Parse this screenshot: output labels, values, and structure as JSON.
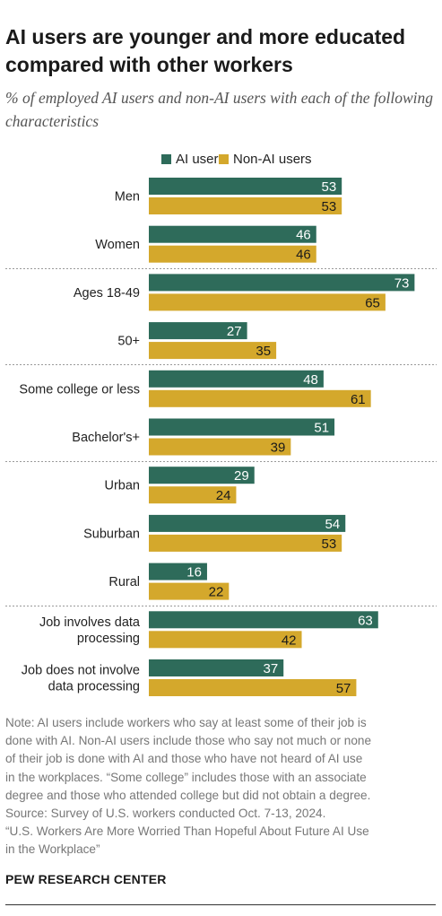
{
  "title": "AI users are younger and more educated compared with other workers",
  "subtitle": "% of employed AI users and non-AI users with each of the following characteristics",
  "legend": [
    {
      "label": "AI users",
      "color": "#2e6b5a"
    },
    {
      "label": "Non-AI users",
      "color": "#d4a82c"
    }
  ],
  "chart_data": {
    "type": "bar",
    "orientation": "horizontal",
    "categories": [
      [
        "Men"
      ],
      [
        "Women"
      ],
      [
        "Ages 18-49"
      ],
      [
        "50+"
      ],
      [
        "Some college or less"
      ],
      [
        "Bachelor's+"
      ],
      [
        "Urban"
      ],
      [
        "Suburban"
      ],
      [
        "Rural"
      ],
      [
        "Job involves data",
        "processing"
      ],
      [
        "Job does not involve",
        "data processing"
      ]
    ],
    "series": [
      {
        "name": "AI users",
        "color": "#2e6b5a",
        "values": [
          53,
          46,
          73,
          27,
          48,
          51,
          29,
          54,
          16,
          63,
          37
        ]
      },
      {
        "name": "Non-AI users",
        "color": "#d4a82c",
        "values": [
          53,
          46,
          65,
          35,
          61,
          39,
          24,
          53,
          22,
          42,
          57
        ]
      }
    ],
    "group_breaks_after": [
      1,
      3,
      5,
      8
    ],
    "xlim": [
      0,
      100
    ],
    "grid": false,
    "legend_position": "top"
  },
  "note_lines": [
    "Note: AI users include workers who say at least some of their job is",
    "done with AI. Non-AI users include those who say not much or none",
    "of their job is done with AI and those who have not heard of AI use",
    "in the workplaces. “Some college” includes those with an associate",
    "degree and those who attended college but did not obtain a degree.",
    "Source: Survey of U.S. workers conducted Oct. 7-13, 2024.",
    "“U.S. Workers Are More Worried Than Hopeful About Future AI Use",
    "in the Workplace”"
  ],
  "brand": "PEW RESEARCH CENTER"
}
